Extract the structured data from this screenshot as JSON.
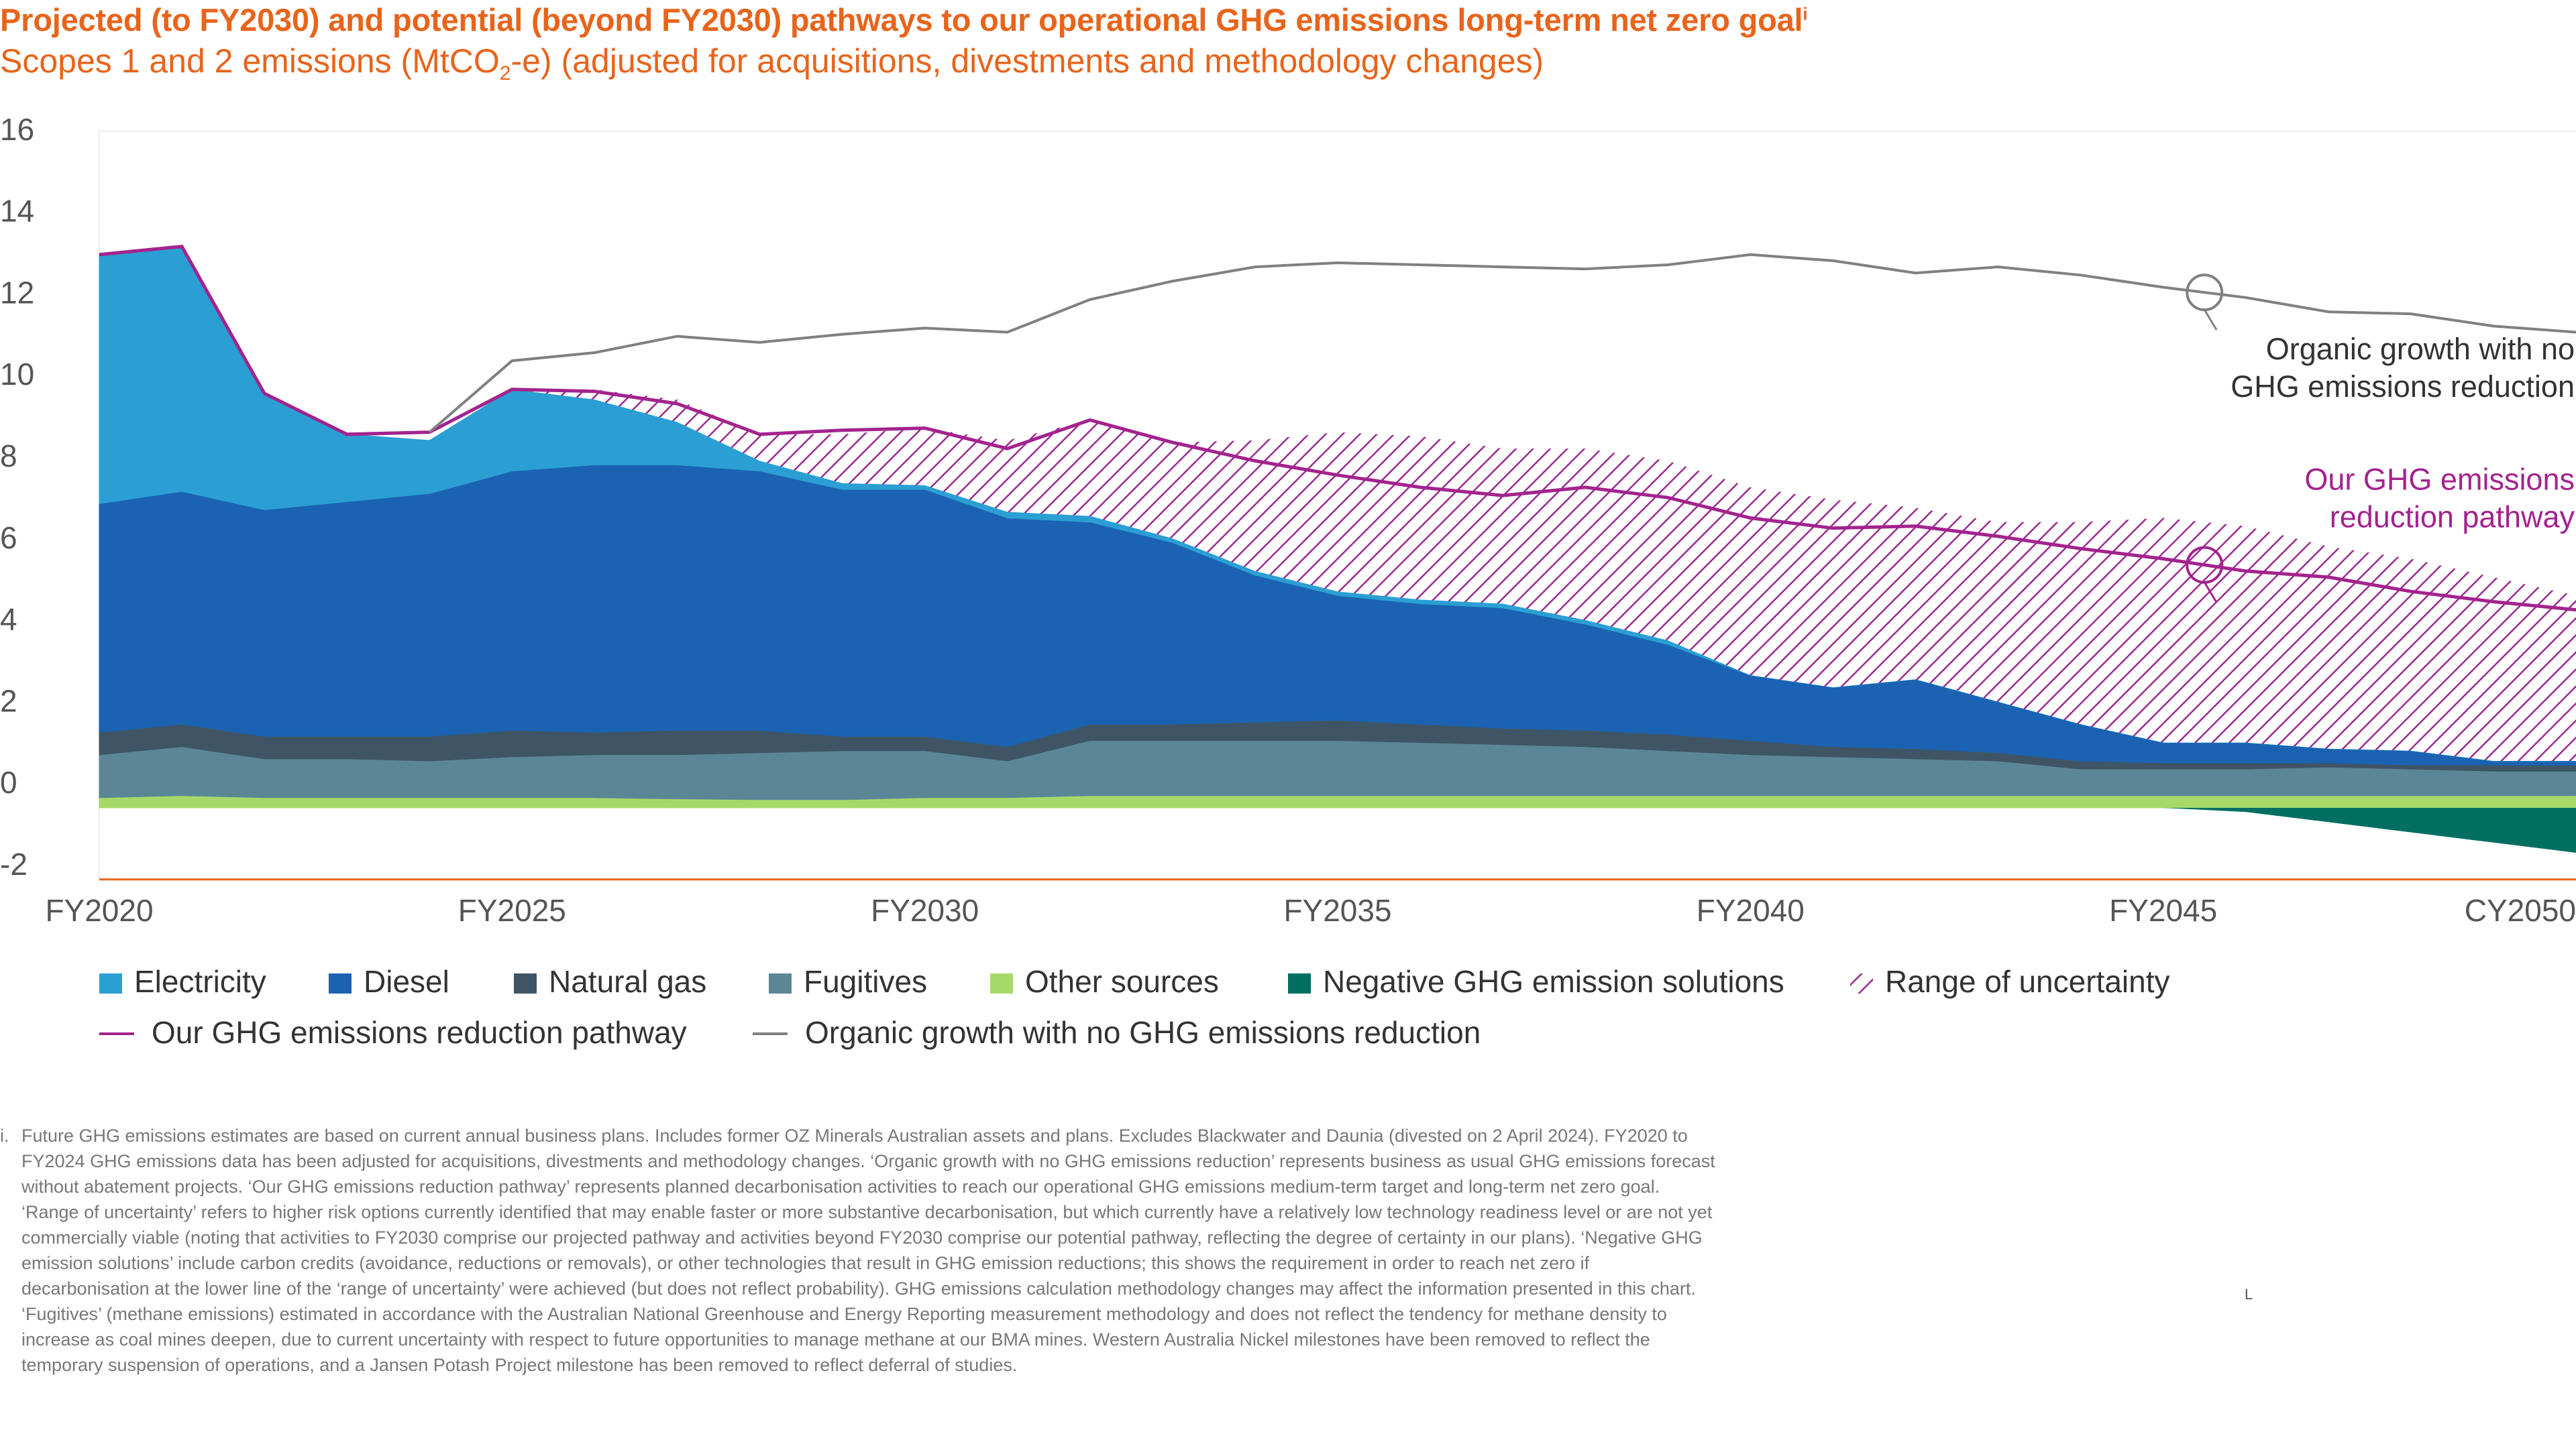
{
  "title": "Projected (to FY2030) and potential (beyond FY2030) pathways to our operational GHG emissions long-term net zero goal",
  "title_marker": "i",
  "subtitle_pre": "Scopes 1 and 2 emissions (MtCO",
  "subtitle_sub": "2",
  "subtitle_post": "-e) (adjusted for acquisitions, divestments and methodology changes)",
  "colors": {
    "electricity": "#2b9fd3",
    "diesel": "#1b63b2",
    "natural_gas": "#3f5566",
    "fugitives": "#5b8696",
    "other_sources": "#a6d96a",
    "negative": "#006f62",
    "uncertainty": "#9b2a92",
    "pathway": "#a3238e",
    "organic": "#808080",
    "accent": "#e8641b"
  },
  "chart_data": {
    "type": "area",
    "x": [
      2020,
      2021,
      2022,
      2023,
      2024,
      2025,
      2026,
      2027,
      2028,
      2029,
      2030,
      2031,
      2032,
      2033,
      2034,
      2035,
      2036,
      2037,
      2038,
      2039,
      2040,
      2041,
      2042,
      2043,
      2044,
      2045,
      2046,
      2047,
      2048,
      2049,
      2050
    ],
    "xticks": [
      {
        "x": 2020,
        "label": "FY2020"
      },
      {
        "x": 2025,
        "label": "FY2025"
      },
      {
        "x": 2030,
        "label": "FY2030"
      },
      {
        "x": 2035,
        "label": "FY2035"
      },
      {
        "x": 2040,
        "label": "FY2040"
      },
      {
        "x": 2045,
        "label": "FY2045"
      },
      {
        "x": 2050,
        "label": "CY2050"
      }
    ],
    "ylim": [
      -2,
      16
    ],
    "yticks": [
      -2,
      0,
      2,
      4,
      6,
      8,
      10,
      12,
      14,
      16
    ],
    "grid": false,
    "series": [
      {
        "key": "other_sources",
        "name": "Other sources",
        "values": [
          0.25,
          0.3,
          0.25,
          0.25,
          0.25,
          0.25,
          0.25,
          0.22,
          0.2,
          0.2,
          0.25,
          0.25,
          0.3,
          0.3,
          0.3,
          0.3,
          0.3,
          0.3,
          0.3,
          0.3,
          0.3,
          0.3,
          0.3,
          0.3,
          0.3,
          0.3,
          0.3,
          0.3,
          0.3,
          0.3,
          0.3
        ]
      },
      {
        "key": "fugitives",
        "name": "Fugitives",
        "values": [
          1.05,
          1.2,
          0.95,
          0.95,
          0.9,
          1.0,
          1.05,
          1.08,
          1.15,
          1.2,
          1.15,
          0.9,
          1.35,
          1.35,
          1.35,
          1.35,
          1.3,
          1.25,
          1.2,
          1.1,
          1.0,
          0.95,
          0.9,
          0.85,
          0.65,
          0.65,
          0.65,
          0.7,
          0.65,
          0.6,
          0.6
        ]
      },
      {
        "key": "natural_gas",
        "name": "Natural gas",
        "values": [
          0.55,
          0.55,
          0.55,
          0.55,
          0.6,
          0.65,
          0.55,
          0.6,
          0.55,
          0.35,
          0.35,
          0.35,
          0.4,
          0.4,
          0.45,
          0.5,
          0.45,
          0.4,
          0.4,
          0.4,
          0.35,
          0.25,
          0.25,
          0.2,
          0.2,
          0.15,
          0.15,
          0.1,
          0.1,
          0.15,
          0.15
        ]
      },
      {
        "key": "diesel",
        "name": "Diesel",
        "values": [
          5.6,
          5.7,
          5.55,
          5.75,
          5.95,
          6.35,
          6.55,
          6.5,
          6.35,
          6.05,
          6.05,
          5.6,
          4.95,
          4.45,
          3.6,
          3.05,
          2.95,
          2.95,
          2.6,
          2.2,
          1.6,
          1.45,
          1.7,
          1.25,
          0.9,
          0.5,
          0.5,
          0.35,
          0.35,
          0.1,
          0.1
        ]
      },
      {
        "key": "electricity",
        "name": "Electricity",
        "values": [
          6.1,
          6.0,
          2.85,
          1.65,
          1.3,
          2.0,
          1.6,
          1.05,
          0.25,
          0.15,
          0.1,
          0.15,
          0.15,
          0.1,
          0.1,
          0.1,
          0.1,
          0.1,
          0.1,
          0.1,
          0.0,
          0.0,
          0.0,
          0.0,
          0.0,
          0.0,
          0.0,
          0.0,
          0.0,
          0.0,
          0.0
        ]
      },
      {
        "key": "uncertainty",
        "name": "Range of uncertainty",
        "values": [
          0,
          0,
          0,
          0,
          0,
          0,
          0.25,
          0.55,
          0.65,
          1.2,
          1.4,
          1.75,
          2.35,
          2.35,
          3.2,
          3.9,
          4.0,
          3.8,
          4.2,
          4.4,
          4.6,
          4.6,
          4.2,
          4.4,
          4.95,
          5.5,
          5.3,
          4.95,
          4.7,
          4.5,
          4.05
        ]
      },
      {
        "key": "negative",
        "name": "Negative GHG emission solutions",
        "values": [
          0,
          0,
          0,
          0,
          0,
          0,
          0,
          0,
          0,
          0,
          0,
          0,
          0,
          0,
          0,
          0,
          0,
          0,
          0,
          0,
          0,
          0,
          0,
          0,
          0,
          0,
          -0.1,
          -0.35,
          -0.6,
          -0.85,
          -1.1
        ]
      }
    ],
    "lines": [
      {
        "key": "pathway",
        "name": "Our GHG emissions reduction pathway",
        "values": [
          13.55,
          13.75,
          10.15,
          9.15,
          9.2,
          10.25,
          10.2,
          9.9,
          9.15,
          9.25,
          9.3,
          8.8,
          9.5,
          8.95,
          8.5,
          8.15,
          7.85,
          7.65,
          7.85,
          7.6,
          7.1,
          6.85,
          6.9,
          6.65,
          6.35,
          6.1,
          5.8,
          5.65,
          5.3,
          5.05,
          4.85
        ]
      },
      {
        "key": "organic",
        "name": "Organic growth with no GHG emissions reduction",
        "values": [
          null,
          null,
          null,
          null,
          9.2,
          10.95,
          11.15,
          11.55,
          11.4,
          11.6,
          11.75,
          11.65,
          12.45,
          12.9,
          13.25,
          13.35,
          13.3,
          13.25,
          13.2,
          13.3,
          13.55,
          13.4,
          13.1,
          13.25,
          13.05,
          12.75,
          12.5,
          12.15,
          12.1,
          11.8,
          11.65
        ]
      }
    ],
    "legend": {
      "placement": "bottom",
      "row1": [
        {
          "key": "electricity",
          "label": "Electricity",
          "kind": "swatch"
        },
        {
          "key": "diesel",
          "label": "Diesel",
          "kind": "swatch"
        },
        {
          "key": "natural_gas",
          "label": "Natural gas",
          "kind": "swatch"
        },
        {
          "key": "fugitives",
          "label": "Fugitives",
          "kind": "swatch"
        },
        {
          "key": "other_sources",
          "label": "Other sources",
          "kind": "swatch"
        },
        {
          "key": "negative",
          "label": "Negative GHG emission solutions",
          "kind": "swatch"
        },
        {
          "key": "uncertainty",
          "label": "Range of uncertainty",
          "kind": "hatch"
        }
      ],
      "row2": [
        {
          "key": "pathway",
          "label": "Our GHG emissions reduction pathway",
          "kind": "line"
        },
        {
          "key": "organic",
          "label": "Organic growth with no GHG emissions reduction",
          "kind": "line"
        }
      ]
    },
    "annotations": [
      {
        "key": "organic",
        "anchor_x": 2045.5,
        "lines": [
          "Organic growth with no",
          "GHG emissions reduction"
        ]
      },
      {
        "key": "pathway",
        "anchor_x": 2045.5,
        "lines": [
          "Our GHG emissions",
          "reduction pathway"
        ]
      }
    ]
  },
  "footnote": {
    "marker": "i.",
    "text": "Future GHG emissions estimates are based on current annual business plans. Includes former OZ Minerals Australian assets and plans. Excludes Blackwater and Daunia (divested on 2 April 2024). FY2020 to FY2024 GHG emissions data has been adjusted for acquisitions, divestments and methodology changes. ‘Organic growth with no GHG emissions reduction’ represents business as usual GHG emissions forecast without abatement projects. ‘Our GHG emissions reduction pathway’ represents planned decarbonisation activities to reach our operational GHG emissions medium-term target and long-term net zero goal. ‘Range of uncertainty’ refers to higher risk options currently identified that may enable faster or more substantive decarbonisation, but which currently have a relatively low technology readiness level or are not yet commercially viable (noting that activities to FY2030 comprise our projected pathway and activities beyond FY2030 comprise our potential pathway, reflecting the degree of certainty in our plans). ‘Negative GHG emission solutions’ include carbon credits (avoidance, reductions or removals), or other technologies that result in GHG emission reductions; this shows the requirement in order to reach net zero if decarbonisation at the lower line of the ‘range of uncertainty’ were achieved (but does not reflect probability). GHG emissions calculation methodology changes may affect the information presented in this chart. ‘Fugitives’ (methane emissions) estimated in accordance with the Australian National Greenhouse and Energy Reporting measurement methodology and does not reflect the tendency for methane density to increase as coal mines deepen, due to current uncertainty with respect to future opportunities to manage methane at our BMA mines. Western Australia Nickel milestones have been removed to reflect the temporary suspension of operations, and a Jansen Potash Project milestone has been removed to reflect deferral of studies."
  },
  "corner_mark": "L"
}
